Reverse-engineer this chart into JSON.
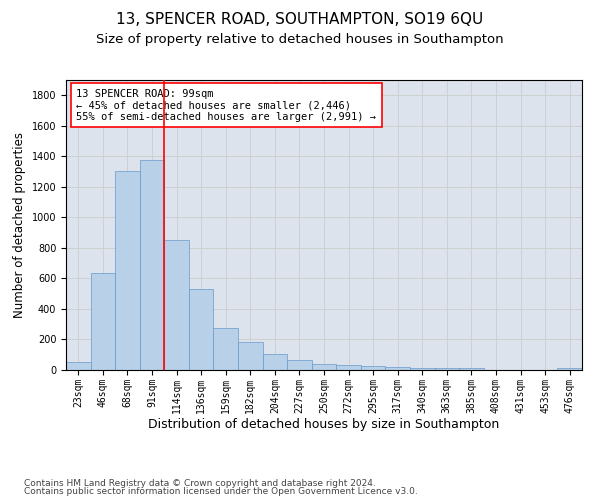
{
  "title": "13, SPENCER ROAD, SOUTHAMPTON, SO19 6QU",
  "subtitle": "Size of property relative to detached houses in Southampton",
  "xlabel": "Distribution of detached houses by size in Southampton",
  "ylabel": "Number of detached properties",
  "categories": [
    "23sqm",
    "46sqm",
    "68sqm",
    "91sqm",
    "114sqm",
    "136sqm",
    "159sqm",
    "182sqm",
    "204sqm",
    "227sqm",
    "250sqm",
    "272sqm",
    "295sqm",
    "317sqm",
    "340sqm",
    "363sqm",
    "385sqm",
    "408sqm",
    "431sqm",
    "453sqm",
    "476sqm"
  ],
  "values": [
    50,
    635,
    1305,
    1375,
    850,
    530,
    275,
    185,
    105,
    65,
    38,
    35,
    28,
    20,
    13,
    13,
    13,
    0,
    0,
    0,
    13
  ],
  "bar_color": "#b8d0e8",
  "bar_edge_color": "#6699cc",
  "vline_color": "red",
  "vline_pos": 3.5,
  "annotation_text": "13 SPENCER ROAD: 99sqm\n← 45% of detached houses are smaller (2,446)\n55% of semi-detached houses are larger (2,991) →",
  "annotation_box_facecolor": "white",
  "annotation_box_edgecolor": "red",
  "ylim": [
    0,
    1900
  ],
  "yticks": [
    0,
    200,
    400,
    600,
    800,
    1000,
    1200,
    1400,
    1600,
    1800
  ],
  "grid_color": "#cccccc",
  "bg_color": "#dde3ed",
  "footnote1": "Contains HM Land Registry data © Crown copyright and database right 2024.",
  "footnote2": "Contains public sector information licensed under the Open Government Licence v3.0.",
  "title_fontsize": 11,
  "subtitle_fontsize": 9.5,
  "xlabel_fontsize": 9,
  "ylabel_fontsize": 8.5,
  "tick_fontsize": 7,
  "annotation_fontsize": 7.5,
  "footnote_fontsize": 6.5
}
